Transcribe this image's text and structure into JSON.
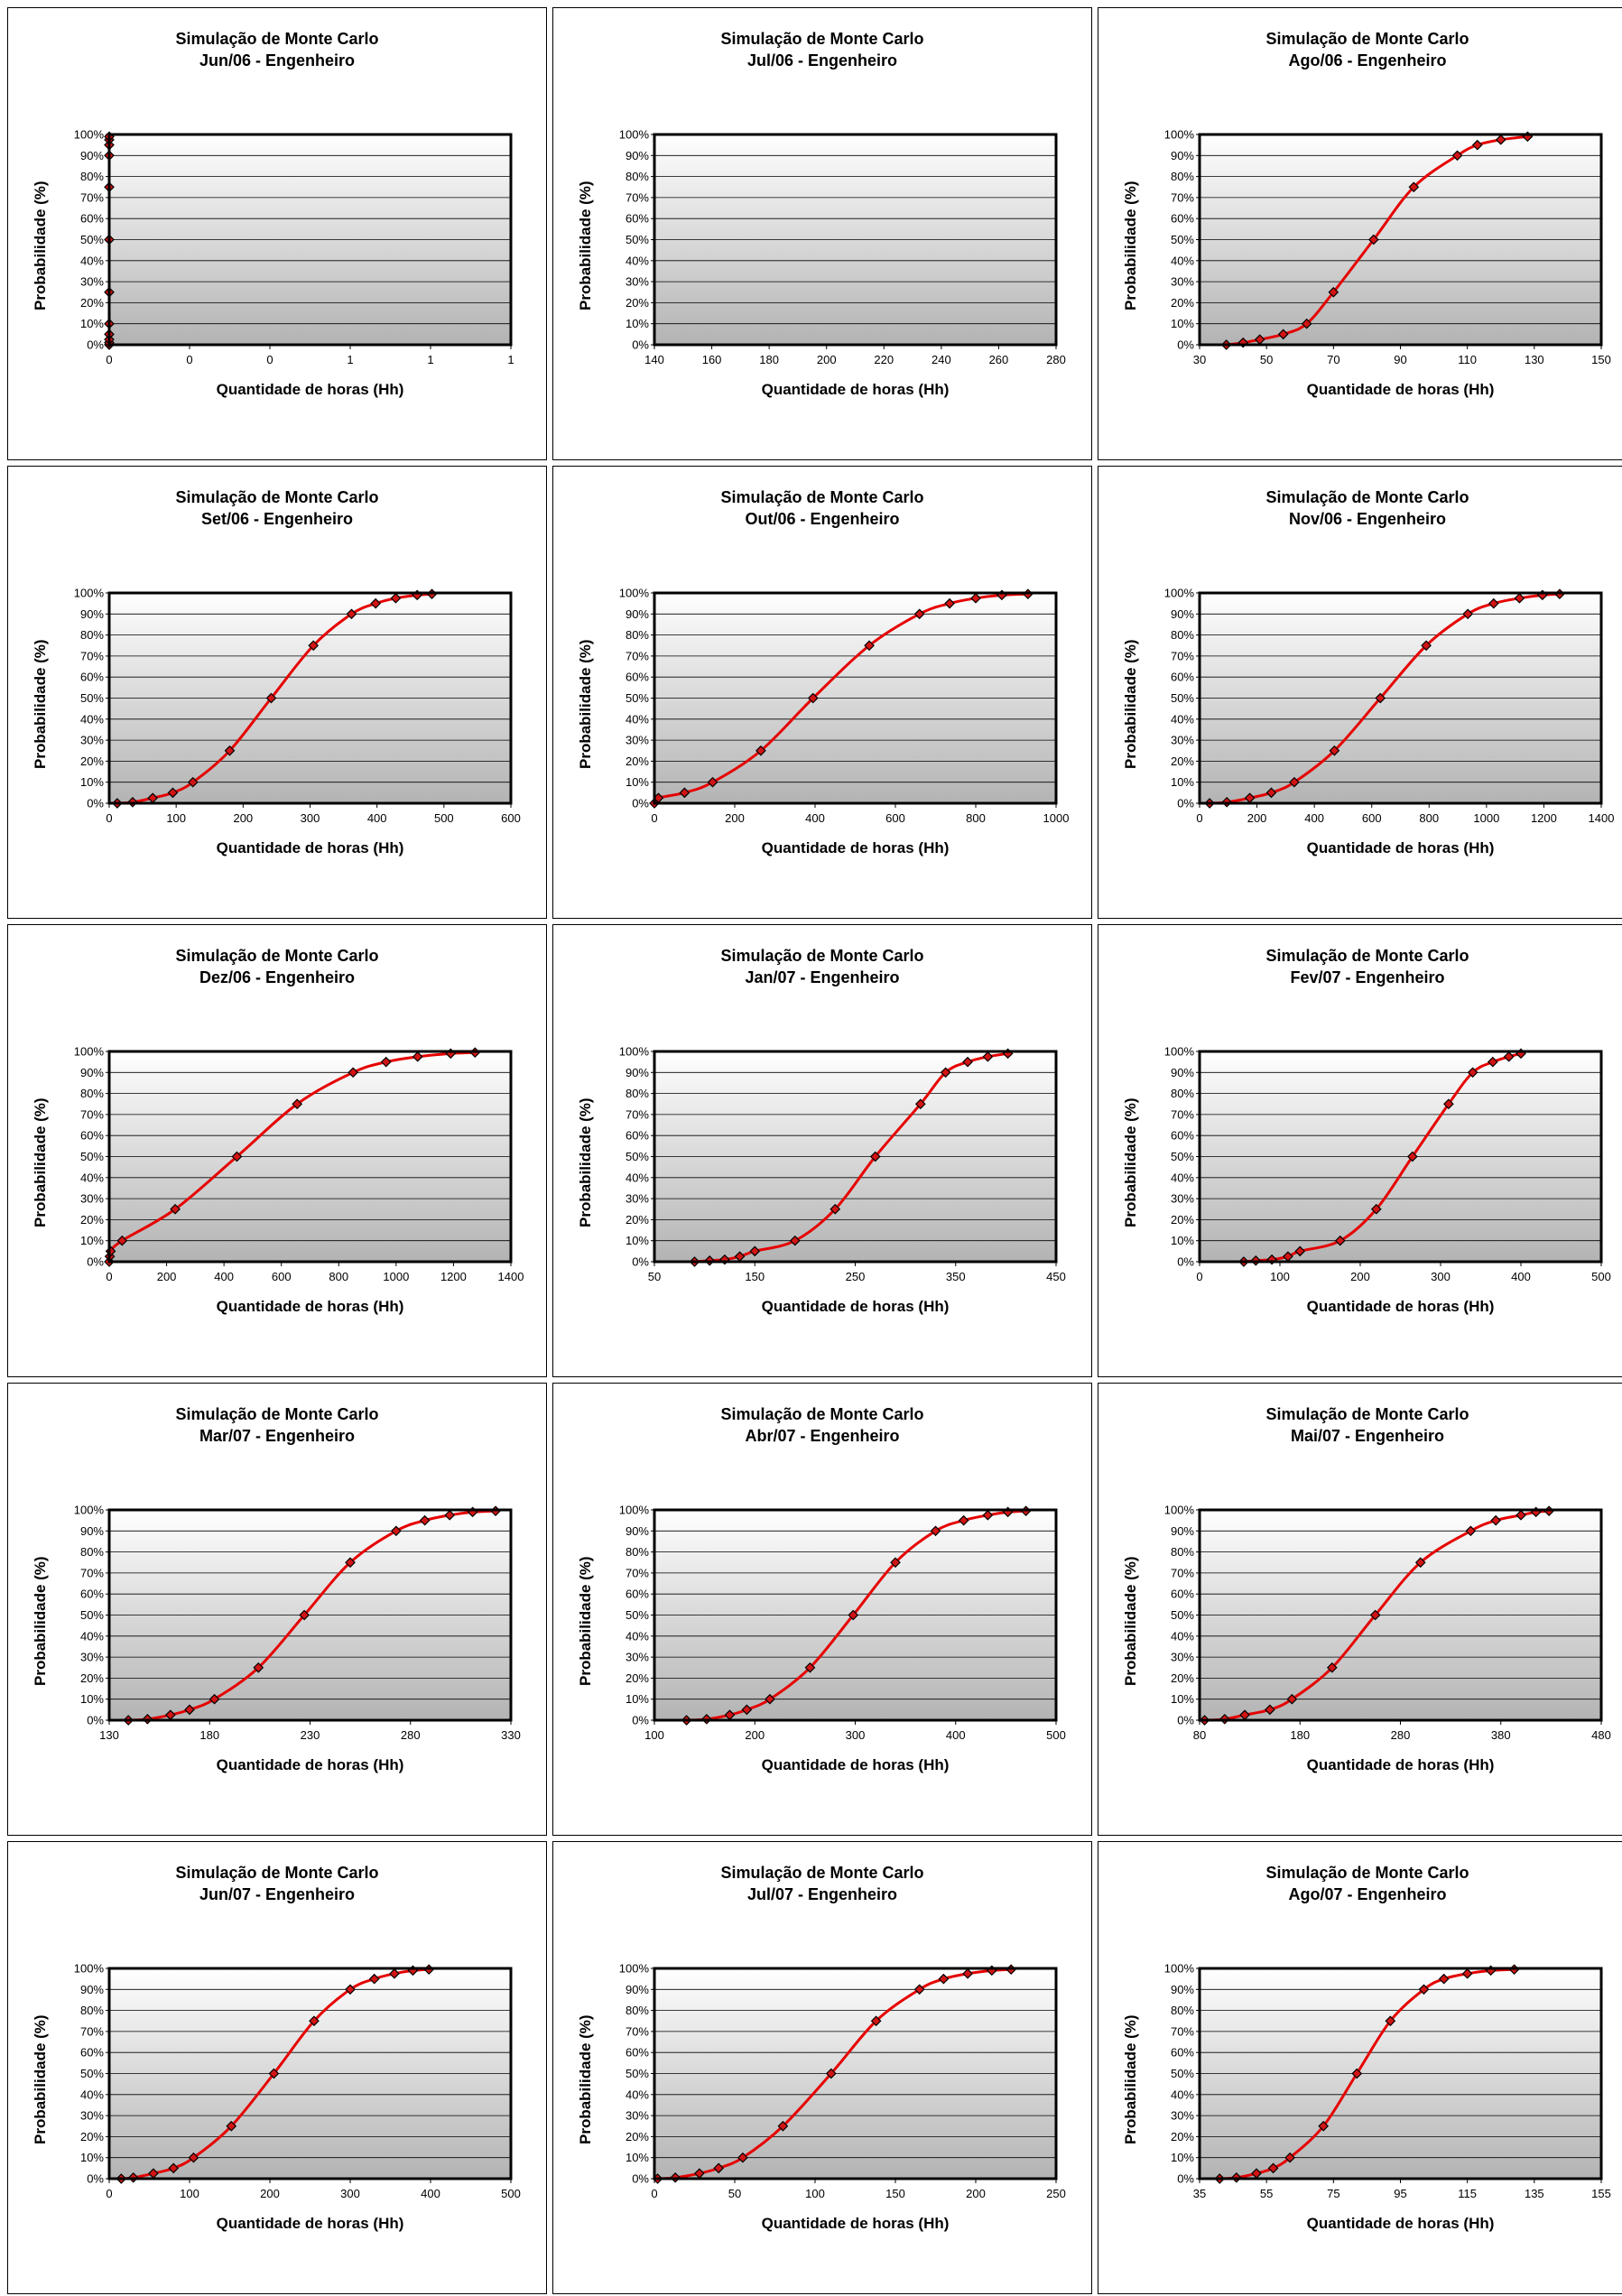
{
  "chart_data": [
    {
      "type": "line",
      "title": "Simulação de Monte Carlo",
      "subtitle": "Jun/06 - Engenheiro",
      "xlabel": "Quantidade de horas (Hh)",
      "ylabel": "Probabilidade (%)",
      "xticks": [
        "0",
        "0",
        "0",
        "1",
        "1",
        "1"
      ],
      "xlim": [
        0,
        1
      ],
      "yticks": [
        "0%",
        "10%",
        "20%",
        "30%",
        "40%",
        "50%",
        "60%",
        "70%",
        "80%",
        "90%",
        "100%"
      ],
      "ylim": [
        0,
        100
      ],
      "series": [
        {
          "x": [
            0,
            0,
            0,
            0,
            0,
            0,
            0,
            0,
            0,
            0,
            0,
            0
          ],
          "y": [
            0,
            1,
            2.5,
            5,
            10,
            25,
            50,
            75,
            90,
            95,
            97.5,
            99
          ]
        }
      ]
    },
    {
      "type": "line",
      "title": "Simulação de Monte Carlo",
      "subtitle": "Jul/06 - Engenheiro",
      "xlabel": "Quantidade de horas (Hh)",
      "ylabel": "Probabilidade (%)",
      "xticks": [
        "140",
        "160",
        "180",
        "200",
        "220",
        "240",
        "260",
        "280"
      ],
      "xlim": [
        140,
        280
      ],
      "yticks": [
        "0%",
        "10%",
        "20%",
        "30%",
        "40%",
        "50%",
        "60%",
        "70%",
        "80%",
        "90%",
        "100%"
      ],
      "ylim": [
        0,
        100
      ],
      "series": [
        {
          "x": [],
          "y": []
        }
      ]
    },
    {
      "type": "line",
      "title": "Simulação de Monte Carlo",
      "subtitle": "Ago/06 - Engenheiro",
      "xlabel": "Quantidade de horas (Hh)",
      "ylabel": "Probabilidade (%)",
      "xticks": [
        "30",
        "50",
        "70",
        "90",
        "110",
        "130",
        "150"
      ],
      "xlim": [
        30,
        150
      ],
      "yticks": [
        "0%",
        "10%",
        "20%",
        "30%",
        "40%",
        "50%",
        "60%",
        "70%",
        "80%",
        "90%",
        "100%"
      ],
      "ylim": [
        0,
        100
      ],
      "series": [
        {
          "x": [
            38,
            43,
            48,
            55,
            62,
            70,
            82,
            94,
            107,
            113,
            120,
            128
          ],
          "y": [
            0,
            1,
            2.5,
            5,
            10,
            25,
            50,
            75,
            90,
            95,
            97.5,
            99
          ]
        }
      ]
    },
    {
      "type": "line",
      "title": "Simulação de Monte Carlo",
      "subtitle": "Set/06 - Engenheiro",
      "xlabel": "Quantidade de horas (Hh)",
      "ylabel": "Probabilidade (%)",
      "xticks": [
        "0",
        "100",
        "200",
        "300",
        "400",
        "500",
        "600"
      ],
      "xlim": [
        0,
        600
      ],
      "yticks": [
        "0%",
        "10%",
        "20%",
        "30%",
        "40%",
        "50%",
        "60%",
        "70%",
        "80%",
        "90%",
        "100%"
      ],
      "ylim": [
        0,
        100
      ],
      "series": [
        {
          "x": [
            12,
            35,
            65,
            95,
            125,
            180,
            242,
            305,
            362,
            398,
            428,
            460,
            482
          ],
          "y": [
            0,
            0.5,
            2.5,
            5,
            10,
            25,
            50,
            75,
            90,
            95,
            97.5,
            99,
            99.5
          ]
        }
      ]
    },
    {
      "type": "line",
      "title": "Simulação de Monte Carlo",
      "subtitle": "Out/06 - Engenheiro",
      "xlabel": "Quantidade de horas (Hh)",
      "ylabel": "Probabilidade (%)",
      "xticks": [
        "0",
        "200",
        "400",
        "600",
        "800",
        "1000"
      ],
      "xlim": [
        0,
        1000
      ],
      "yticks": [
        "0%",
        "10%",
        "20%",
        "30%",
        "40%",
        "50%",
        "60%",
        "70%",
        "80%",
        "90%",
        "100%"
      ],
      "ylim": [
        0,
        100
      ],
      "series": [
        {
          "x": [
            0,
            10,
            75,
            145,
            265,
            395,
            535,
            660,
            735,
            800,
            865,
            930
          ],
          "y": [
            0,
            2.5,
            5,
            10,
            25,
            50,
            75,
            90,
            95,
            97.5,
            99,
            99.5
          ]
        }
      ]
    },
    {
      "type": "line",
      "title": "Simulação de Monte Carlo",
      "subtitle": "Nov/06 - Engenheiro",
      "xlabel": "Quantidade de horas (Hh)",
      "ylabel": "Probabilidade (%)",
      "xticks": [
        "0",
        "200",
        "400",
        "600",
        "800",
        "1000",
        "1200",
        "1400"
      ],
      "xlim": [
        0,
        1400
      ],
      "yticks": [
        "0%",
        "10%",
        "20%",
        "30%",
        "40%",
        "50%",
        "60%",
        "70%",
        "80%",
        "90%",
        "100%"
      ],
      "ylim": [
        0,
        100
      ],
      "series": [
        {
          "x": [
            35,
            95,
            175,
            250,
            330,
            470,
            630,
            790,
            935,
            1025,
            1115,
            1195,
            1255
          ],
          "y": [
            0,
            0.5,
            2.5,
            5,
            10,
            25,
            50,
            75,
            90,
            95,
            97.5,
            99,
            99.5
          ]
        }
      ]
    },
    {
      "type": "line",
      "title": "Simulação de Monte Carlo",
      "subtitle": "Dez/06 - Engenheiro",
      "xlabel": "Quantidade de horas (Hh)",
      "ylabel": "Probabilidade (%)",
      "xticks": [
        "0",
        "200",
        "400",
        "600",
        "800",
        "1000",
        "1200",
        "1400"
      ],
      "xlim": [
        0,
        1400
      ],
      "yticks": [
        "0%",
        "10%",
        "20%",
        "30%",
        "40%",
        "50%",
        "60%",
        "70%",
        "80%",
        "90%",
        "100%"
      ],
      "ylim": [
        0,
        100
      ],
      "series": [
        {
          "x": [
            0,
            2,
            5,
            45,
            230,
            445,
            655,
            850,
            965,
            1075,
            1190,
            1275
          ],
          "y": [
            0,
            2.5,
            5,
            10,
            25,
            50,
            75,
            90,
            95,
            97.5,
            99,
            99.5
          ]
        }
      ]
    },
    {
      "type": "line",
      "title": "Simulação de Monte Carlo",
      "subtitle": "Jan/07 - Engenheiro",
      "xlabel": "Quantidade de horas (Hh)",
      "ylabel": "Probabilidade (%)",
      "xticks": [
        "50",
        "150",
        "250",
        "350",
        "450"
      ],
      "xlim": [
        50,
        450
      ],
      "yticks": [
        "0%",
        "10%",
        "20%",
        "30%",
        "40%",
        "50%",
        "60%",
        "70%",
        "80%",
        "90%",
        "100%"
      ],
      "ylim": [
        0,
        100
      ],
      "series": [
        {
          "x": [
            90,
            105,
            120,
            135,
            150,
            190,
            230,
            270,
            315,
            340,
            362,
            382,
            402
          ],
          "y": [
            0,
            0.5,
            1,
            2.5,
            5,
            10,
            25,
            50,
            75,
            90,
            95,
            97.5,
            99
          ]
        }
      ]
    },
    {
      "type": "line",
      "title": "Simulação de Monte Carlo",
      "subtitle": "Fev/07 - Engenheiro",
      "xlabel": "Quantidade de horas (Hh)",
      "ylabel": "Probabilidade (%)",
      "xticks": [
        "0",
        "100",
        "200",
        "300",
        "400",
        "500"
      ],
      "xlim": [
        0,
        500
      ],
      "yticks": [
        "0%",
        "10%",
        "20%",
        "30%",
        "40%",
        "50%",
        "60%",
        "70%",
        "80%",
        "90%",
        "100%"
      ],
      "ylim": [
        0,
        100
      ],
      "series": [
        {
          "x": [
            55,
            70,
            90,
            110,
            125,
            175,
            220,
            265,
            310,
            340,
            365,
            385,
            400
          ],
          "y": [
            0,
            0.5,
            1,
            2.5,
            5,
            10,
            25,
            50,
            75,
            90,
            95,
            97.5,
            99
          ]
        }
      ]
    },
    {
      "type": "line",
      "title": "Simulação de Monte Carlo",
      "subtitle": "Mar/07 - Engenheiro",
      "xlabel": "Quantidade de horas (Hh)",
      "ylabel": "Probabilidade (%)",
      "xticks": [
        "130",
        "180",
        "230",
        "280",
        "330"
      ],
      "xlim": [
        130,
        340
      ],
      "yticks": [
        "0%",
        "10%",
        "20%",
        "30%",
        "40%",
        "50%",
        "60%",
        "70%",
        "80%",
        "90%",
        "100%"
      ],
      "ylim": [
        0,
        100
      ],
      "series": [
        {
          "x": [
            140,
            150,
            162,
            172,
            185,
            208,
            232,
            256,
            280,
            295,
            308,
            320,
            332
          ],
          "y": [
            0,
            0.5,
            2.5,
            5,
            10,
            25,
            50,
            75,
            90,
            95,
            97.5,
            99,
            99.5
          ]
        }
      ]
    },
    {
      "type": "line",
      "title": "Simulação de Monte Carlo",
      "subtitle": "Abr/07 - Engenheiro",
      "xlabel": "Quantidade de horas (Hh)",
      "ylabel": "Probabilidade (%)",
      "xticks": [
        "100",
        "200",
        "300",
        "400",
        "500"
      ],
      "xlim": [
        100,
        500
      ],
      "yticks": [
        "0%",
        "10%",
        "20%",
        "30%",
        "40%",
        "50%",
        "60%",
        "70%",
        "80%",
        "90%",
        "100%"
      ],
      "ylim": [
        0,
        100
      ],
      "series": [
        {
          "x": [
            132,
            152,
            175,
            192,
            215,
            255,
            298,
            340,
            380,
            408,
            432,
            452,
            470
          ],
          "y": [
            0,
            0.5,
            2.5,
            5,
            10,
            25,
            50,
            75,
            90,
            95,
            97.5,
            99,
            99.5
          ]
        }
      ]
    },
    {
      "type": "line",
      "title": "Simulação de Monte Carlo",
      "subtitle": "Mai/07 - Engenheiro",
      "xlabel": "Quantidade de horas (Hh)",
      "ylabel": "Probabilidade (%)",
      "xticks": [
        "80",
        "180",
        "280",
        "380",
        "480"
      ],
      "xlim": [
        80,
        480
      ],
      "yticks": [
        "0%",
        "10%",
        "20%",
        "30%",
        "40%",
        "50%",
        "60%",
        "70%",
        "80%",
        "90%",
        "100%"
      ],
      "ylim": [
        0,
        100
      ],
      "series": [
        {
          "x": [
            85,
            105,
            125,
            150,
            172,
            212,
            255,
            300,
            350,
            375,
            400,
            415,
            428
          ],
          "y": [
            0,
            0.5,
            2.5,
            5,
            10,
            25,
            50,
            75,
            90,
            95,
            97.5,
            99,
            99.5
          ]
        }
      ]
    },
    {
      "type": "line",
      "title": "Simulação de Monte Carlo",
      "subtitle": "Jun/07 - Engenheiro",
      "xlabel": "Quantidade de horas (Hh)",
      "ylabel": "Probabilidade (%)",
      "xticks": [
        "0",
        "100",
        "200",
        "300",
        "400",
        "500"
      ],
      "xlim": [
        0,
        500
      ],
      "yticks": [
        "0%",
        "10%",
        "20%",
        "30%",
        "40%",
        "50%",
        "60%",
        "70%",
        "80%",
        "90%",
        "100%"
      ],
      "ylim": [
        0,
        100
      ],
      "series": [
        {
          "x": [
            15,
            30,
            55,
            80,
            105,
            152,
            205,
            255,
            300,
            330,
            355,
            378,
            398
          ],
          "y": [
            0,
            0.5,
            2.5,
            5,
            10,
            25,
            50,
            75,
            90,
            95,
            97.5,
            99,
            99.5
          ]
        }
      ]
    },
    {
      "type": "line",
      "title": "Simulação de Monte Carlo",
      "subtitle": "Jul/07 - Engenheiro",
      "xlabel": "Quantidade de horas (Hh)",
      "ylabel": "Probabilidade (%)",
      "xticks": [
        "0",
        "50",
        "100",
        "150",
        "200",
        "250"
      ],
      "xlim": [
        0,
        250
      ],
      "yticks": [
        "0%",
        "10%",
        "20%",
        "30%",
        "40%",
        "50%",
        "60%",
        "70%",
        "80%",
        "90%",
        "100%"
      ],
      "ylim": [
        0,
        100
      ],
      "series": [
        {
          "x": [
            2,
            13,
            28,
            40,
            55,
            80,
            110,
            138,
            165,
            180,
            195,
            210,
            222
          ],
          "y": [
            0,
            0.5,
            2.5,
            5,
            10,
            25,
            50,
            75,
            90,
            95,
            97.5,
            99,
            99.5
          ]
        }
      ]
    },
    {
      "type": "line",
      "title": "Simulação de Monte Carlo",
      "subtitle": "Ago/07 - Engenheiro",
      "xlabel": "Quantidade de horas (Hh)",
      "ylabel": "Probabilidade (%)",
      "xticks": [
        "35",
        "55",
        "75",
        "95",
        "115",
        "135",
        "155"
      ],
      "xlim": [
        35,
        155
      ],
      "yticks": [
        "0%",
        "10%",
        "20%",
        "30%",
        "40%",
        "50%",
        "60%",
        "70%",
        "80%",
        "90%",
        "100%"
      ],
      "ylim": [
        0,
        100
      ],
      "series": [
        {
          "x": [
            41,
            46,
            52,
            57,
            62,
            72,
            82,
            92,
            102,
            108,
            115,
            122,
            129
          ],
          "y": [
            0,
            0.5,
            2.5,
            5,
            10,
            25,
            50,
            75,
            90,
            95,
            97.5,
            99,
            99.5
          ]
        }
      ]
    }
  ]
}
